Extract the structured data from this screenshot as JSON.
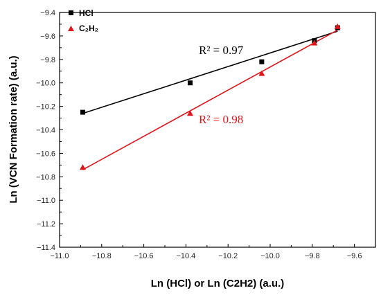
{
  "chart_data": {
    "type": "scatter",
    "xlabel": "Ln (HCl) or Ln (C2H2) (a.u.)",
    "ylabel": "Ln (VCN Formation rate) (a.u.)",
    "xlim": [
      -11.0,
      -9.5
    ],
    "ylim": [
      -11.4,
      -9.4
    ],
    "x_ticks": [
      -11.0,
      -10.8,
      -10.6,
      -10.4,
      -10.2,
      -10.0,
      -9.8,
      -9.6
    ],
    "y_ticks": [
      -11.4,
      -11.2,
      -11.0,
      -10.8,
      -10.6,
      -10.4,
      -10.2,
      -10.0,
      -9.8,
      -9.6,
      -9.4
    ],
    "legend_position": "top-left",
    "grid": false,
    "series": [
      {
        "name": "HCl",
        "marker": "square",
        "color": "#000000",
        "x": [
          -10.89,
          -10.38,
          -10.04,
          -9.79,
          -9.68
        ],
        "y": [
          -10.25,
          -10.0,
          -9.82,
          -9.64,
          -9.53
        ],
        "fit": {
          "x": [
            -10.89,
            -9.68
          ],
          "y": [
            -10.26,
            -9.56
          ]
        },
        "annotation": "R² = 0.97"
      },
      {
        "name": "C₂H₂",
        "marker": "triangle",
        "color": "#e0141b",
        "x": [
          -10.89,
          -10.38,
          -10.04,
          -9.79,
          -9.68
        ],
        "y": [
          -10.72,
          -10.26,
          -9.92,
          -9.66,
          -9.52
        ],
        "fit": {
          "x": [
            -10.89,
            -9.68
          ],
          "y": [
            -10.74,
            -9.55
          ]
        },
        "annotation": "R² = 0.98"
      }
    ]
  }
}
